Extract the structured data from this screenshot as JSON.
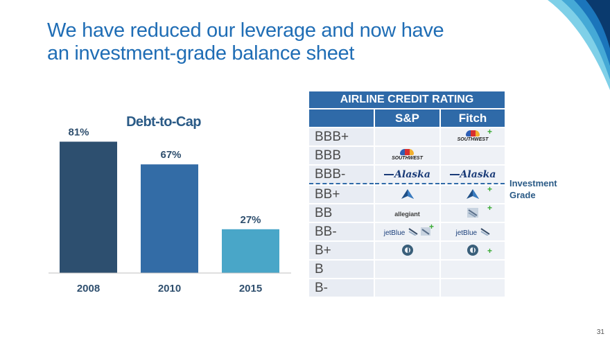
{
  "slide": {
    "title_line1": "We have reduced our leverage and now have",
    "title_line2": "an investment-grade balance sheet",
    "page_number": "31",
    "accent_colors": [
      "#0a3a6e",
      "#1b75bb",
      "#45a9d6",
      "#7fd0e8"
    ]
  },
  "chart_data": {
    "type": "bar",
    "title": "Debt-to-Cap",
    "categories": [
      "2008",
      "2010",
      "2015"
    ],
    "values": [
      81,
      67,
      27
    ],
    "data_labels": [
      "81%",
      "67%",
      "27%"
    ],
    "colors": [
      "#2d4f6f",
      "#336ca6",
      "#49a6c8"
    ],
    "ylim": [
      0,
      100
    ]
  },
  "rating_table": {
    "title": "AIRLINE CREDIT RATING",
    "col_sp": "S&P",
    "col_fitch": "Fitch",
    "rows": [
      {
        "grade": "BBB+"
      },
      {
        "grade": "BBB"
      },
      {
        "grade": "BBB-"
      },
      {
        "grade": "BB+"
      },
      {
        "grade": "BB"
      },
      {
        "grade": "BB-"
      },
      {
        "grade": "B+"
      },
      {
        "grade": "B"
      },
      {
        "grade": "B-"
      }
    ],
    "logos": {
      "southwest": "SOUTHWEST",
      "alaska": "Alaska",
      "allegiant": "allegiant",
      "jetblue": "jetBlue",
      "plus": "+"
    },
    "investment_grade_line1": "Investment",
    "investment_grade_line2": "Grade"
  }
}
